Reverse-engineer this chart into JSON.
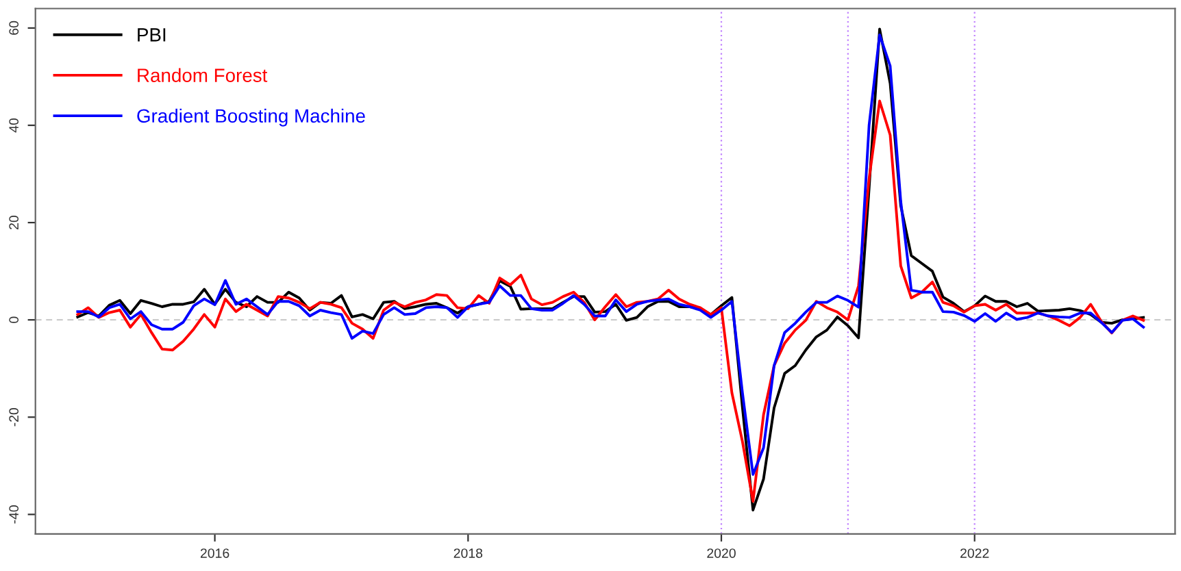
{
  "chart_data": {
    "type": "line",
    "x": [
      "2014-12",
      "2015-01",
      "2015-02",
      "2015-03",
      "2015-04",
      "2015-05",
      "2015-06",
      "2015-07",
      "2015-08",
      "2015-09",
      "2015-10",
      "2015-11",
      "2015-12",
      "2016-01",
      "2016-02",
      "2016-03",
      "2016-04",
      "2016-05",
      "2016-06",
      "2016-07",
      "2016-08",
      "2016-09",
      "2016-10",
      "2016-11",
      "2016-12",
      "2017-01",
      "2017-02",
      "2017-03",
      "2017-04",
      "2017-05",
      "2017-06",
      "2017-07",
      "2017-08",
      "2017-09",
      "2017-10",
      "2017-11",
      "2017-12",
      "2018-01",
      "2018-02",
      "2018-03",
      "2018-04",
      "2018-05",
      "2018-06",
      "2018-07",
      "2018-08",
      "2018-09",
      "2018-10",
      "2018-11",
      "2018-12",
      "2019-01",
      "2019-02",
      "2019-03",
      "2019-04",
      "2019-05",
      "2019-06",
      "2019-07",
      "2019-08",
      "2019-09",
      "2019-10",
      "2019-11",
      "2019-12",
      "2020-01",
      "2020-02",
      "2020-03",
      "2020-04",
      "2020-05",
      "2020-06",
      "2020-07",
      "2020-08",
      "2020-09",
      "2020-10",
      "2020-11",
      "2020-12",
      "2021-01",
      "2021-02",
      "2021-03",
      "2021-04",
      "2021-05",
      "2021-06",
      "2021-07",
      "2021-08",
      "2021-09",
      "2021-10",
      "2021-11",
      "2021-12",
      "2022-01",
      "2022-02",
      "2022-03",
      "2022-04",
      "2022-05",
      "2022-06",
      "2022-07",
      "2022-08",
      "2022-09",
      "2022-10",
      "2022-11",
      "2022-12",
      "2023-01",
      "2023-02",
      "2023-03",
      "2023-04",
      "2023-05"
    ],
    "series": [
      {
        "name": "PBI",
        "color": "#000000",
        "values": [
          0.6,
          1.5,
          0.8,
          3,
          4,
          1.3,
          4,
          3.4,
          2.7,
          3.2,
          3.2,
          3.7,
          6.3,
          3.2,
          6.3,
          3.6,
          2.7,
          4.8,
          3.6,
          3.6,
          5.7,
          4.5,
          2,
          3.6,
          3.4,
          5,
          0.6,
          1.1,
          0.2,
          3.6,
          3.8,
          2.3,
          2.7,
          3.2,
          3.4,
          2.5,
          1.4,
          2.7,
          3.2,
          3.8,
          8,
          6.9,
          2.2,
          2.3,
          2.3,
          2.3,
          3.6,
          4.8,
          4.8,
          1.6,
          1.7,
          3.2,
          -0.1,
          0.5,
          2.7,
          3.8,
          3.8,
          2.7,
          2.7,
          2.3,
          1.1,
          2.9,
          4.6,
          -18,
          -39.1,
          -32.7,
          -18.1,
          -11,
          -9.4,
          -6.2,
          -3.5,
          -2.1,
          0.6,
          -1.2,
          -3.7,
          27,
          59.8,
          48.6,
          23.5,
          13.2,
          11.6,
          10,
          4.7,
          3.4,
          1.7,
          2.9,
          4.9,
          3.8,
          3.8,
          2.7,
          3.4,
          1.8,
          1.9,
          2,
          2.3,
          1.9,
          1.1,
          -0.5,
          -0.7,
          0,
          0.2,
          0.5
        ]
      },
      {
        "name": "Random Forest",
        "color": "#ff0000",
        "values": [
          1.1,
          2.5,
          0.5,
          1.5,
          2,
          -1.5,
          1.1,
          -2.6,
          -6,
          -6.2,
          -4.4,
          -1.9,
          1.1,
          -1.5,
          4.3,
          1.7,
          3.2,
          2,
          0.8,
          4.8,
          4.5,
          3.6,
          2.3,
          3.6,
          3.2,
          2.5,
          -0.7,
          -1.9,
          -3.8,
          2,
          3.6,
          2.7,
          3.6,
          4.1,
          5.2,
          5,
          2.5,
          2.3,
          5,
          3.4,
          8.6,
          7.2,
          9.2,
          4.3,
          3.1,
          3.6,
          4.8,
          5.7,
          3.6,
          0,
          2.7,
          5.2,
          2.7,
          3.6,
          3.8,
          4.3,
          6.1,
          4.3,
          3.2,
          2.5,
          1.1,
          2.5,
          -15,
          -25,
          -37.3,
          -19.5,
          -9.4,
          -4.8,
          -2.1,
          -0.1,
          3.8,
          2.5,
          1.6,
          0,
          7,
          29,
          45,
          38,
          11.1,
          4.5,
          5.7,
          7.8,
          3.6,
          2.9,
          1.6,
          2.9,
          3.2,
          2,
          3.2,
          1.4,
          1.4,
          1.4,
          0.8,
          -0.1,
          -1.2,
          0.5,
          3.2,
          -0.3,
          -2.7,
          -0.1,
          0.8,
          -0.1
        ]
      },
      {
        "name": "Gradient Boosting Machine",
        "color": "#0000ff",
        "values": [
          1.7,
          1.7,
          0.6,
          2.5,
          3.2,
          0.2,
          1.7,
          -1,
          -1.9,
          -1.9,
          -0.5,
          2.9,
          4.3,
          3.1,
          8.1,
          3.2,
          4.3,
          2.7,
          1.1,
          3.8,
          3.8,
          2.9,
          0.8,
          2,
          1.5,
          1.1,
          -3.8,
          -2.3,
          -2.8,
          1.1,
          2.5,
          1.1,
          1.3,
          2.5,
          2.7,
          2.5,
          0.5,
          2.7,
          3.2,
          3.6,
          7,
          5,
          5,
          2.3,
          2,
          2,
          3.4,
          5,
          3.2,
          0.8,
          0.8,
          4.1,
          1.7,
          3.2,
          3.8,
          4.1,
          4.3,
          3.2,
          2.7,
          2,
          0.5,
          2,
          3.8,
          -15,
          -31.8,
          -26.3,
          -9.4,
          -2.6,
          -0.7,
          1.6,
          3.6,
          3.6,
          4.9,
          4,
          2.6,
          40,
          58.6,
          52.2,
          24.4,
          6.1,
          5.7,
          5.7,
          1.7,
          1.6,
          0.9,
          -0.3,
          1.3,
          -0.3,
          1.4,
          0.1,
          0.5,
          1.4,
          0.8,
          0.6,
          0.5,
          1.4,
          1.4,
          -0.5,
          -2.6,
          -0.1,
          0.2,
          -1.5
        ]
      }
    ],
    "xlim": [
      "2014-08",
      "2023-08"
    ],
    "xticks": [
      {
        "value": "2016-01",
        "label": "2016"
      },
      {
        "value": "2018-01",
        "label": "2018"
      },
      {
        "value": "2020-01",
        "label": "2020"
      },
      {
        "value": "2022-01",
        "label": "2022"
      }
    ],
    "ylim": [
      -44,
      64
    ],
    "yticks": [
      -40,
      -20,
      0,
      20,
      40,
      60
    ],
    "ref_lines": [
      {
        "axis": "x",
        "value": "2020-01",
        "color": "#bf7fff",
        "line_style": "dotted"
      },
      {
        "axis": "x",
        "value": "2021-01",
        "color": "#bf7fff",
        "line_style": "dotted"
      },
      {
        "axis": "x",
        "value": "2022-01",
        "color": "#bf7fff",
        "line_style": "dotted"
      },
      {
        "axis": "y",
        "value": 0,
        "color": "#cccccc",
        "line_style": "dashed"
      }
    ],
    "grid": false,
    "legend": "top left",
    "line_style": "solid"
  }
}
